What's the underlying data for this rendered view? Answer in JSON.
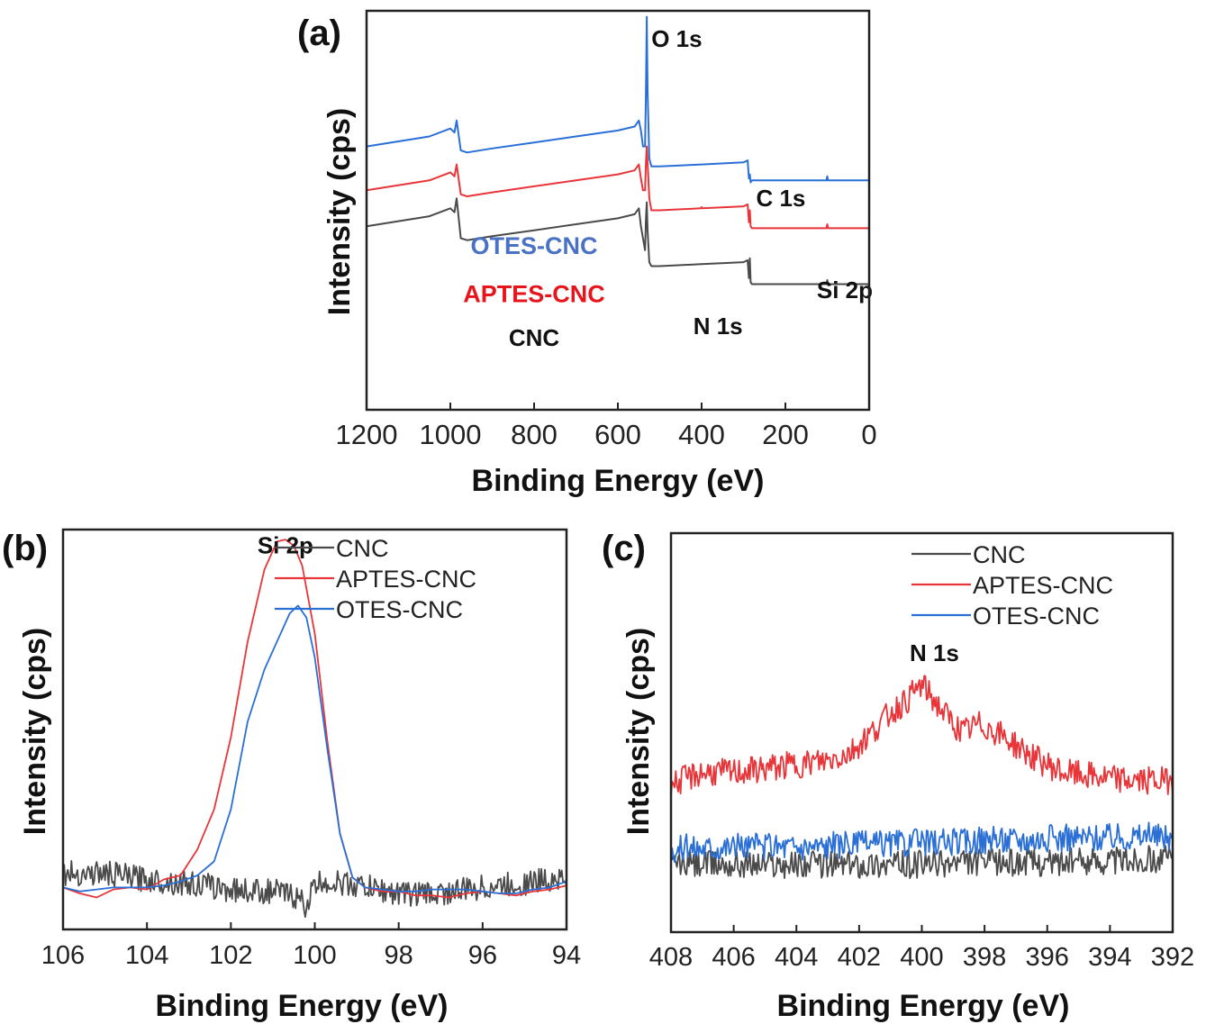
{
  "colors": {
    "CNC": "#4a4a4a",
    "APTES-CNC": "#e8353a",
    "OTES-CNC": "#2a6fd6",
    "APTES-CNC-label": "#e8141c",
    "OTES-CNC-label": "#4a72c4"
  },
  "chart_data": [
    {
      "id": "a",
      "type": "line",
      "panel_label": "(a)",
      "title": "",
      "xlabel": "Binding Energy (eV)",
      "ylabel": "Intensity (cps)",
      "xlim": [
        1200,
        0
      ],
      "x_reversed": true,
      "ylim": [
        0,
        100
      ],
      "y_ticks_shown": false,
      "xticks": [
        1200,
        1000,
        800,
        600,
        400,
        200,
        0
      ],
      "xtick_labels": [
        "1200",
        "1000",
        "800",
        "600",
        "400",
        "200",
        "0"
      ],
      "grid": false,
      "legend": "none",
      "series": [
        {
          "name": "OTES-CNC",
          "note": "stacked survey spectrum (offset), relative intensity units",
          "x": [
            1200,
            1050,
            1000,
            990,
            985,
            975,
            960,
            900,
            800,
            700,
            600,
            560,
            550,
            545,
            540,
            535,
            533,
            531,
            529,
            525,
            520,
            500,
            400,
            300,
            290,
            287,
            285,
            283,
            280,
            200,
            102,
            100,
            98,
            0
          ],
          "values": [
            66,
            68.5,
            70.5,
            69.5,
            72.5,
            65,
            64.5,
            65.5,
            67,
            68.5,
            70,
            71,
            72.5,
            70,
            66,
            66,
            80,
            98.5,
            80,
            63,
            61,
            61,
            61.5,
            62,
            62.5,
            58,
            59,
            57,
            57.5,
            57.5,
            57.5,
            58.5,
            57.5,
            57.5
          ]
        },
        {
          "name": "APTES-CNC",
          "note": "stacked survey spectrum (offset), relative intensity units",
          "x": [
            1200,
            1050,
            1000,
            990,
            985,
            975,
            960,
            900,
            800,
            700,
            600,
            560,
            550,
            545,
            540,
            535,
            533,
            531,
            529,
            525,
            520,
            500,
            402,
            400,
            398,
            300,
            290,
            287,
            285,
            283,
            280,
            200,
            102,
            100,
            98,
            0
          ],
          "values": [
            55,
            57.5,
            59.5,
            58.5,
            61.5,
            54,
            53.5,
            54.5,
            56,
            57.5,
            59,
            60,
            61.5,
            58,
            55,
            55,
            62,
            66,
            62,
            53,
            50,
            50,
            50.5,
            50.8,
            50.5,
            51,
            51.5,
            47,
            50,
            46,
            45.5,
            45.5,
            45.5,
            46.5,
            45.5,
            45.5
          ]
        },
        {
          "name": "CNC",
          "note": "stacked survey spectrum (offset), relative intensity units",
          "x": [
            1200,
            1050,
            1000,
            990,
            985,
            975,
            960,
            900,
            800,
            700,
            600,
            560,
            550,
            545,
            540,
            535,
            533,
            531,
            529,
            525,
            520,
            500,
            400,
            300,
            290,
            287,
            285,
            283,
            280,
            200,
            102,
            100,
            98,
            0
          ],
          "values": [
            46,
            48.5,
            50.5,
            49.5,
            53,
            43,
            42.5,
            43.5,
            45,
            46.5,
            48,
            49,
            50.5,
            46,
            43,
            40,
            48,
            52,
            45,
            37,
            36,
            36,
            36.5,
            37,
            37.5,
            33,
            38,
            32,
            31.5,
            31.5,
            31.5,
            32.5,
            31.5,
            31.5
          ]
        }
      ],
      "annotations": [
        {
          "text": "O 1s",
          "x": 520,
          "y": 91
        },
        {
          "text": "C 1s",
          "x": 270,
          "y": 51
        },
        {
          "text": "Si 2p",
          "x": 125,
          "y": 28
        },
        {
          "text": "N 1s",
          "x": 420,
          "y": 19
        },
        {
          "text": "OTES-CNC",
          "x": 800,
          "y": 39,
          "color_key": "OTES-CNC-label"
        },
        {
          "text": "APTES-CNC",
          "x": 800,
          "y": 27,
          "color_key": "APTES-CNC-label"
        },
        {
          "text": "CNC",
          "x": 800,
          "y": 16,
          "color_key": "CNC"
        }
      ]
    },
    {
      "id": "b",
      "type": "line",
      "panel_label": "(b)",
      "title": "",
      "xlabel": "Binding Energy (eV)",
      "ylabel": "Intensity (cps)",
      "xlim": [
        106,
        94
      ],
      "x_reversed": true,
      "ylim": [
        0,
        100
      ],
      "y_ticks_shown": false,
      "xticks": [
        106,
        104,
        102,
        100,
        98,
        96,
        94
      ],
      "xtick_labels": [
        "106",
        "104",
        "102",
        "100",
        "98",
        "96",
        "94"
      ],
      "grid": false,
      "legend": "top-right",
      "annotations": [
        {
          "text": "Si 2p",
          "x": 100.7,
          "y": 94
        }
      ],
      "series": [
        {
          "name": "CNC",
          "noise": 3.2,
          "x": [
            106,
            105,
            104,
            103,
            102,
            101,
            100.5,
            100.2,
            100,
            99.8,
            99,
            98,
            97,
            96,
            95,
            94.2,
            94
          ],
          "values": [
            14,
            14,
            12.5,
            11.5,
            10,
            9.5,
            8.5,
            6,
            11,
            12,
            11,
            9,
            9,
            10.5,
            11.5,
            13,
            12
          ]
        },
        {
          "name": "APTES-CNC",
          "x": [
            106,
            105.6,
            105.2,
            104.8,
            104.4,
            104,
            103.6,
            103.2,
            102.8,
            102.4,
            102,
            101.6,
            101.2,
            100.9,
            100.7,
            100.5,
            100.3,
            100,
            99.7,
            99.4,
            99.1,
            98.8,
            98.4,
            98,
            97.6,
            97.2,
            96.8,
            96.4,
            96,
            95.6,
            95.2,
            94.8,
            94.4,
            94
          ],
          "values": [
            10.5,
            9,
            8,
            10,
            10.5,
            10,
            12.5,
            13.5,
            20,
            30,
            48,
            72,
            90,
            97,
            97.5,
            96,
            91,
            74,
            47,
            24,
            13,
            10.5,
            9.5,
            9.5,
            8.5,
            8.5,
            8,
            9,
            9.5,
            9,
            8.5,
            9.5,
            10,
            11
          ]
        },
        {
          "name": "OTES-CNC",
          "x": [
            106,
            105.6,
            105.2,
            104.8,
            104.4,
            104,
            103.6,
            103.2,
            102.8,
            102.4,
            102,
            101.6,
            101.2,
            100.9,
            100.6,
            100.4,
            100.2,
            100,
            99.7,
            99.4,
            99.1,
            98.8,
            98.4,
            98,
            97.6,
            97.2,
            96.8,
            96.4,
            96,
            95.6,
            95.2,
            94.8,
            94.4,
            94
          ],
          "values": [
            10.5,
            9.5,
            10,
            10.5,
            10.5,
            10.5,
            11,
            12,
            13.5,
            17,
            30,
            52,
            65,
            72,
            79,
            81,
            78,
            68,
            45,
            24,
            13,
            10.5,
            10,
            9.5,
            9.5,
            10,
            10,
            10,
            9.5,
            9,
            9,
            10,
            10.5,
            12
          ]
        }
      ]
    },
    {
      "id": "c",
      "type": "line",
      "panel_label": "(c)",
      "title": "",
      "xlabel": "Binding Energy (eV)",
      "ylabel": "Intensity (cps)",
      "xlim": [
        408,
        392
      ],
      "x_reversed": true,
      "ylim": [
        0,
        100
      ],
      "y_ticks_shown": false,
      "xticks": [
        408,
        406,
        404,
        402,
        400,
        398,
        396,
        394,
        392
      ],
      "xtick_labels": [
        "408",
        "406",
        "404",
        "402",
        "400",
        "398",
        "396",
        "394",
        "392"
      ],
      "grid": false,
      "legend": "top-right",
      "annotations": [
        {
          "text": "N 1s",
          "x": 399.6,
          "y": 68
        }
      ],
      "series": [
        {
          "name": "CNC",
          "noise": 3.5,
          "x": [
            408,
            406,
            404,
            402,
            400,
            398,
            396,
            394,
            392
          ],
          "values": [
            17,
            17,
            17,
            17,
            17,
            17.5,
            17.5,
            18,
            18.5
          ]
        },
        {
          "name": "APTES-CNC",
          "noise": 3.5,
          "x": [
            408,
            407,
            406,
            405,
            404,
            403,
            402.3,
            401.6,
            401,
            400.5,
            400,
            399.6,
            399.2,
            398.7,
            398.2,
            397.8,
            397.2,
            396.5,
            395.5,
            394.5,
            393.5,
            392.5,
            392
          ],
          "values": [
            37,
            40,
            40,
            41,
            42,
            43,
            45,
            50,
            55,
            58,
            62,
            58,
            54,
            50,
            52,
            51,
            48,
            44,
            40,
            39,
            38,
            38,
            38
          ]
        },
        {
          "name": "OTES-CNC",
          "noise": 3.5,
          "x": [
            408,
            406,
            404,
            402,
            400,
            398,
            396,
            394,
            392
          ],
          "values": [
            21,
            21.5,
            21.5,
            22,
            22.5,
            23,
            23.5,
            24,
            24
          ]
        }
      ]
    }
  ]
}
